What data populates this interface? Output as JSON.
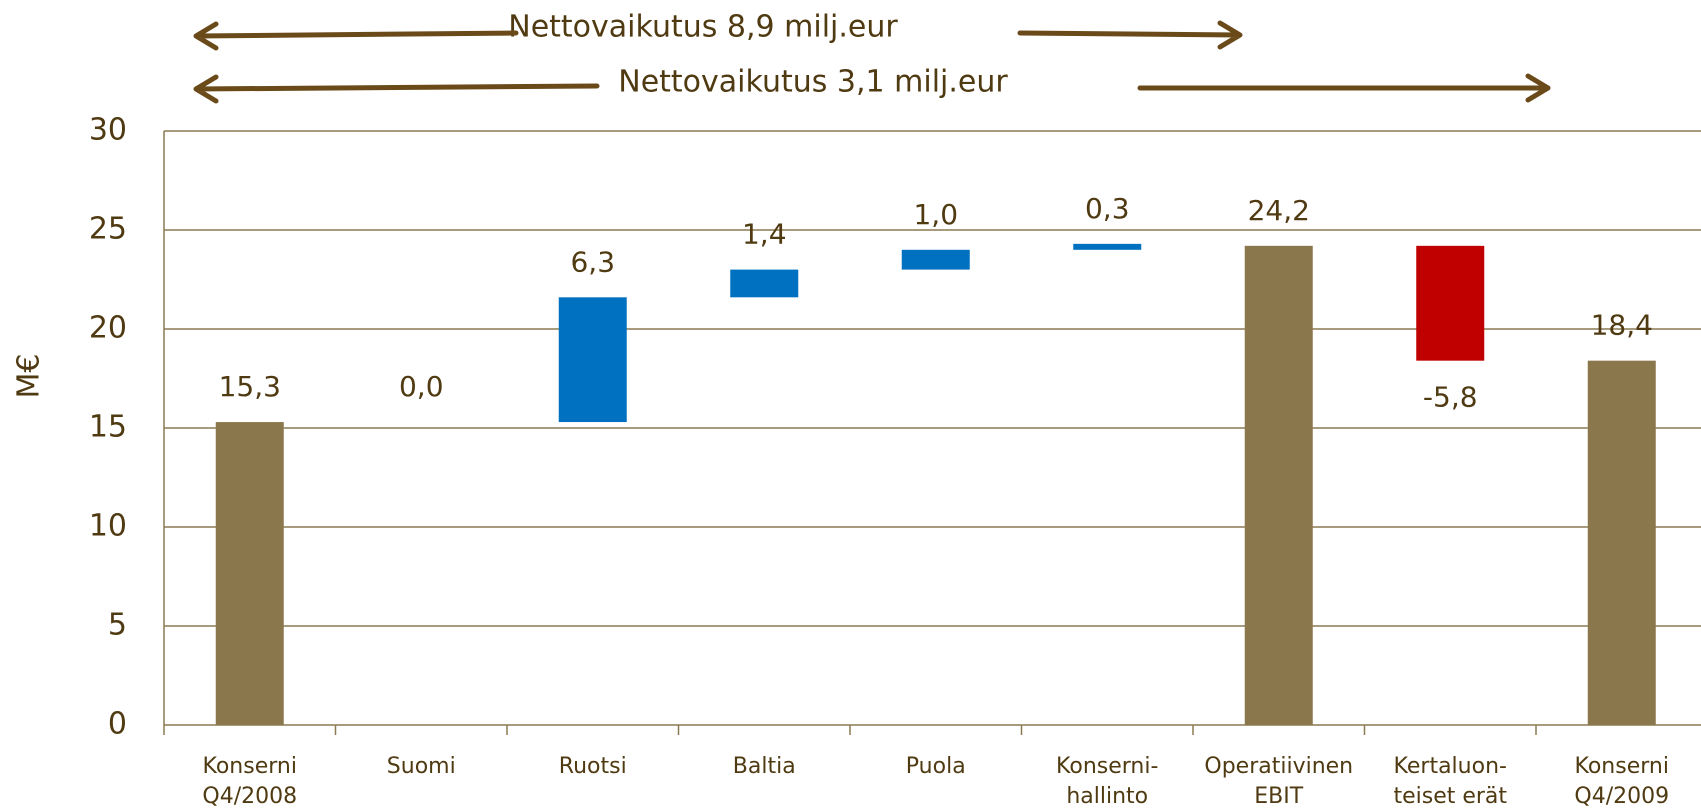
{
  "chart_data": {
    "type": "waterfall",
    "y_label": "M€",
    "annotations": [
      "Nettovaikutus 8,9 milj.eur",
      "Nettovaikutus 3,1 milj.eur"
    ],
    "categories": [
      [
        "Konserni",
        "Q4/2008"
      ],
      [
        "Suomi"
      ],
      [
        "Ruotsi"
      ],
      [
        "Baltia"
      ],
      [
        "Puola"
      ],
      [
        "Konserni-",
        "hallinto"
      ],
      [
        "Operatiivinen",
        "EBIT"
      ],
      [
        "Kertaluon-",
        "teiset erät"
      ],
      [
        "Konserni",
        "Q4/2009"
      ]
    ],
    "values": [
      15.3,
      0.0,
      6.3,
      1.4,
      1.0,
      0.3,
      24.2,
      -5.8,
      18.4
    ],
    "value_labels": [
      "15,3",
      "0,0",
      "6,3",
      "1,4",
      "1,0",
      "0,3",
      "24,2",
      "-5,8",
      "18,4"
    ],
    "measure": [
      "absolute",
      "relative",
      "relative",
      "relative",
      "relative",
      "relative",
      "total",
      "relative",
      "total"
    ],
    "colors": [
      "#8b774c",
      "#0070c0",
      "#0070c0",
      "#0070c0",
      "#0070c0",
      "#0070c0",
      "#8b774c",
      "#c00000",
      "#8b774c"
    ],
    "ylim": [
      0,
      30
    ],
    "yticks": [
      0,
      5,
      10,
      15,
      20,
      25,
      30
    ],
    "grid": true
  }
}
